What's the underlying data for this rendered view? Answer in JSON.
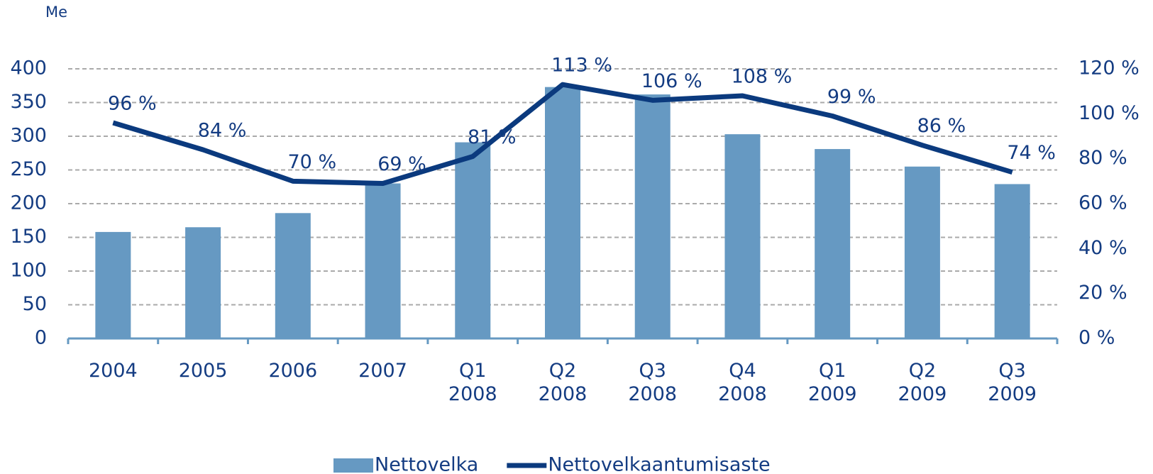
{
  "chart_data": {
    "type": "bar",
    "y_label": "Me",
    "categories": [
      "2004",
      "2005",
      "2006",
      "2007",
      "Q1 2008",
      "Q2 2008",
      "Q3 2008",
      "Q4 2008",
      "Q1 2009",
      "Q2 2009",
      "Q3 2009"
    ],
    "series": [
      {
        "name": "Nettovelka",
        "type": "bar",
        "color": "#6699c2",
        "values": [
          158,
          165,
          186,
          230,
          291,
          373,
          362,
          303,
          281,
          255,
          229
        ]
      },
      {
        "name": "Nettovelkaantumisaste",
        "type": "line",
        "axis": "y2",
        "color": "#0b3a7e",
        "values": [
          96,
          84,
          70,
          69,
          81,
          113,
          106,
          108,
          99,
          86,
          74
        ],
        "value_labels": [
          "96 %",
          "84 %",
          "70 %",
          "69 %",
          "81 %",
          "113 %",
          "106 %",
          "108 %",
          "99 %",
          "86 %",
          "74 %"
        ]
      }
    ],
    "ylim": [
      0,
      400
    ],
    "yticks": [
      0,
      50,
      100,
      150,
      200,
      250,
      300,
      350,
      400
    ],
    "y2lim": [
      0,
      120
    ],
    "y2ticks": [
      {
        "value": 0,
        "label": "0 %"
      },
      {
        "value": 20,
        "label": "20 %"
      },
      {
        "value": 40,
        "label": "40 %"
      },
      {
        "value": 60,
        "label": "60 %"
      },
      {
        "value": 80,
        "label": "80 %"
      },
      {
        "value": 100,
        "label": "100 %"
      },
      {
        "value": 120,
        "label": "120 %"
      }
    ],
    "grid": true,
    "legend": "bottom"
  }
}
